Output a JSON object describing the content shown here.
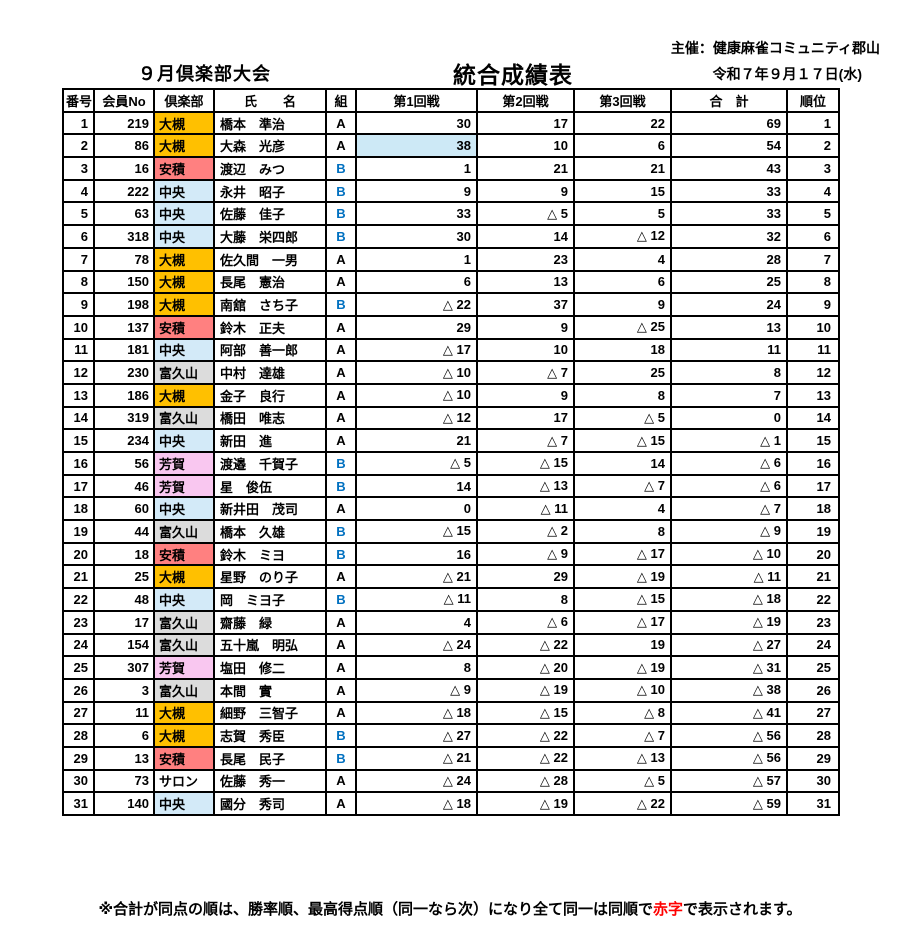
{
  "header": {
    "organizer": "主催：健康麻雀コミュニティ郡山",
    "event_title": "９月倶楽部大会",
    "main_title": "統合成績表",
    "date": "令和７年９月１７日(水)"
  },
  "colors": {
    "row_number_cyan": "#00B0F0",
    "rank_navy": "#17375E",
    "group_b_blue": "#0070C0",
    "round1_highlight_blue": "#CDE9F6",
    "footnote_red": "#FF0000",
    "border_black": "#000000"
  },
  "club_colors": {
    "大槻": "#FFC000",
    "安積": "#FF8080",
    "中央": "#D3EAF8",
    "富久山": "#DCDCDC",
    "芳賀": "#F9C7F0",
    "サロン": "#FFFFFF"
  },
  "table": {
    "columns": [
      "番号",
      "会員No",
      "倶楽部",
      "氏　　名",
      "組",
      "第1回戦",
      "第2回戦",
      "第3回戦",
      "合　計",
      "順位"
    ],
    "rows": [
      {
        "no": "1",
        "member_no": "219",
        "club": "大槻",
        "name": "橋本　準治",
        "group": "A",
        "r1": "30",
        "r2": "17",
        "r3": "22",
        "total": "69",
        "rank": "1",
        "r1_highlighted": false
      },
      {
        "no": "2",
        "member_no": "86",
        "club": "大槻",
        "name": "大森　光彦",
        "group": "A",
        "r1": "38",
        "r2": "10",
        "r3": "6",
        "total": "54",
        "rank": "2",
        "r1_highlighted": true
      },
      {
        "no": "3",
        "member_no": "16",
        "club": "安積",
        "name": "渡辺　みつ",
        "group": "B",
        "r1": "1",
        "r2": "21",
        "r3": "21",
        "total": "43",
        "rank": "3",
        "r1_highlighted": false
      },
      {
        "no": "4",
        "member_no": "222",
        "club": "中央",
        "name": "永井　昭子",
        "group": "B",
        "r1": "9",
        "r2": "9",
        "r3": "15",
        "total": "33",
        "rank": "4",
        "r1_highlighted": false
      },
      {
        "no": "5",
        "member_no": "63",
        "club": "中央",
        "name": "佐藤　佳子",
        "group": "B",
        "r1": "33",
        "r2": "△ 5",
        "r3": "5",
        "total": "33",
        "rank": "5",
        "r1_highlighted": false
      },
      {
        "no": "6",
        "member_no": "318",
        "club": "中央",
        "name": "大藤　栄四郎",
        "group": "B",
        "r1": "30",
        "r2": "14",
        "r3": "△ 12",
        "total": "32",
        "rank": "6",
        "r1_highlighted": false
      },
      {
        "no": "7",
        "member_no": "78",
        "club": "大槻",
        "name": "佐久間　一男",
        "group": "A",
        "r1": "1",
        "r2": "23",
        "r3": "4",
        "total": "28",
        "rank": "7",
        "r1_highlighted": false
      },
      {
        "no": "8",
        "member_no": "150",
        "club": "大槻",
        "name": "長尾　憲治",
        "group": "A",
        "r1": "6",
        "r2": "13",
        "r3": "6",
        "total": "25",
        "rank": "8",
        "r1_highlighted": false
      },
      {
        "no": "9",
        "member_no": "198",
        "club": "大槻",
        "name": "南舘　さち子",
        "group": "B",
        "r1": "△ 22",
        "r2": "37",
        "r3": "9",
        "total": "24",
        "rank": "9",
        "r1_highlighted": false
      },
      {
        "no": "10",
        "member_no": "137",
        "club": "安積",
        "name": "鈴木　正夫",
        "group": "A",
        "r1": "29",
        "r2": "9",
        "r3": "△ 25",
        "total": "13",
        "rank": "10",
        "r1_highlighted": false
      },
      {
        "no": "11",
        "member_no": "181",
        "club": "中央",
        "name": "阿部　善一郎",
        "group": "A",
        "r1": "△ 17",
        "r2": "10",
        "r3": "18",
        "total": "11",
        "rank": "11",
        "r1_highlighted": false
      },
      {
        "no": "12",
        "member_no": "230",
        "club": "富久山",
        "name": "中村　達雄",
        "group": "A",
        "r1": "△ 10",
        "r2": "△ 7",
        "r3": "25",
        "total": "8",
        "rank": "12",
        "r1_highlighted": false
      },
      {
        "no": "13",
        "member_no": "186",
        "club": "大槻",
        "name": "金子　良行",
        "group": "A",
        "r1": "△ 10",
        "r2": "9",
        "r3": "8",
        "total": "7",
        "rank": "13",
        "r1_highlighted": false
      },
      {
        "no": "14",
        "member_no": "319",
        "club": "富久山",
        "name": "橋田　唯志",
        "group": "A",
        "r1": "△ 12",
        "r2": "17",
        "r3": "△ 5",
        "total": "0",
        "rank": "14",
        "r1_highlighted": false
      },
      {
        "no": "15",
        "member_no": "234",
        "club": "中央",
        "name": "新田　進",
        "group": "A",
        "r1": "21",
        "r2": "△ 7",
        "r3": "△ 15",
        "total": "△ 1",
        "rank": "15",
        "r1_highlighted": false
      },
      {
        "no": "16",
        "member_no": "56",
        "club": "芳賀",
        "name": "渡邉　千賀子",
        "group": "B",
        "r1": "△ 5",
        "r2": "△ 15",
        "r3": "14",
        "total": "△ 6",
        "rank": "16",
        "r1_highlighted": false
      },
      {
        "no": "17",
        "member_no": "46",
        "club": "芳賀",
        "name": "星　俊伍",
        "group": "B",
        "r1": "14",
        "r2": "△ 13",
        "r3": "△ 7",
        "total": "△ 6",
        "rank": "17",
        "r1_highlighted": false
      },
      {
        "no": "18",
        "member_no": "60",
        "club": "中央",
        "name": "新井田　茂司",
        "group": "A",
        "r1": "0",
        "r2": "△ 11",
        "r3": "4",
        "total": "△ 7",
        "rank": "18",
        "r1_highlighted": false
      },
      {
        "no": "19",
        "member_no": "44",
        "club": "富久山",
        "name": "橋本　久雄",
        "group": "B",
        "r1": "△ 15",
        "r2": "△ 2",
        "r3": "8",
        "total": "△ 9",
        "rank": "19",
        "r1_highlighted": false
      },
      {
        "no": "20",
        "member_no": "18",
        "club": "安積",
        "name": "鈴木　ミヨ",
        "group": "B",
        "r1": "16",
        "r2": "△ 9",
        "r3": "△ 17",
        "total": "△ 10",
        "rank": "20",
        "r1_highlighted": false
      },
      {
        "no": "21",
        "member_no": "25",
        "club": "大槻",
        "name": "星野　のり子",
        "group": "A",
        "r1": "△ 21",
        "r2": "29",
        "r3": "△ 19",
        "total": "△ 11",
        "rank": "21",
        "r1_highlighted": false
      },
      {
        "no": "22",
        "member_no": "48",
        "club": "中央",
        "name": "岡　ミヨ子",
        "group": "B",
        "r1": "△ 11",
        "r2": "8",
        "r3": "△ 15",
        "total": "△ 18",
        "rank": "22",
        "r1_highlighted": false
      },
      {
        "no": "23",
        "member_no": "17",
        "club": "富久山",
        "name": "齋藤　緑",
        "group": "A",
        "r1": "4",
        "r2": "△ 6",
        "r3": "△ 17",
        "total": "△ 19",
        "rank": "23",
        "r1_highlighted": false
      },
      {
        "no": "24",
        "member_no": "154",
        "club": "富久山",
        "name": "五十嵐　明弘",
        "group": "A",
        "r1": "△ 24",
        "r2": "△ 22",
        "r3": "19",
        "total": "△ 27",
        "rank": "24",
        "r1_highlighted": false
      },
      {
        "no": "25",
        "member_no": "307",
        "club": "芳賀",
        "name": "塩田　修二",
        "group": "A",
        "r1": "8",
        "r2": "△ 20",
        "r3": "△ 19",
        "total": "△ 31",
        "rank": "25",
        "r1_highlighted": false
      },
      {
        "no": "26",
        "member_no": "3",
        "club": "富久山",
        "name": "本間　實",
        "group": "A",
        "r1": "△ 9",
        "r2": "△ 19",
        "r3": "△ 10",
        "total": "△ 38",
        "rank": "26",
        "r1_highlighted": false
      },
      {
        "no": "27",
        "member_no": "11",
        "club": "大槻",
        "name": "細野　三智子",
        "group": "A",
        "r1": "△ 18",
        "r2": "△ 15",
        "r3": "△ 8",
        "total": "△ 41",
        "rank": "27",
        "r1_highlighted": false
      },
      {
        "no": "28",
        "member_no": "6",
        "club": "大槻",
        "name": "志賀　秀臣",
        "group": "B",
        "r1": "△ 27",
        "r2": "△ 22",
        "r3": "△ 7",
        "total": "△ 56",
        "rank": "28",
        "r1_highlighted": false
      },
      {
        "no": "29",
        "member_no": "13",
        "club": "安積",
        "name": "長尾　民子",
        "group": "B",
        "r1": "△ 21",
        "r2": "△ 22",
        "r3": "△ 13",
        "total": "△ 56",
        "rank": "29",
        "r1_highlighted": false
      },
      {
        "no": "30",
        "member_no": "73",
        "club": "サロン",
        "name": "佐藤　秀一",
        "group": "A",
        "r1": "△ 24",
        "r2": "△ 28",
        "r3": "△ 5",
        "total": "△ 57",
        "rank": "30",
        "r1_highlighted": false
      },
      {
        "no": "31",
        "member_no": "140",
        "club": "中央",
        "name": "國分　秀司",
        "group": "A",
        "r1": "△ 18",
        "r2": "△ 19",
        "r3": "△ 22",
        "total": "△ 59",
        "rank": "31",
        "r1_highlighted": false
      }
    ]
  },
  "footer": {
    "note_prefix": "※合計が同点の順は、勝率順、最高得点順（同一なら次）になり全て同一は同順で",
    "note_red": "赤字",
    "note_suffix": "で表示されます。"
  }
}
